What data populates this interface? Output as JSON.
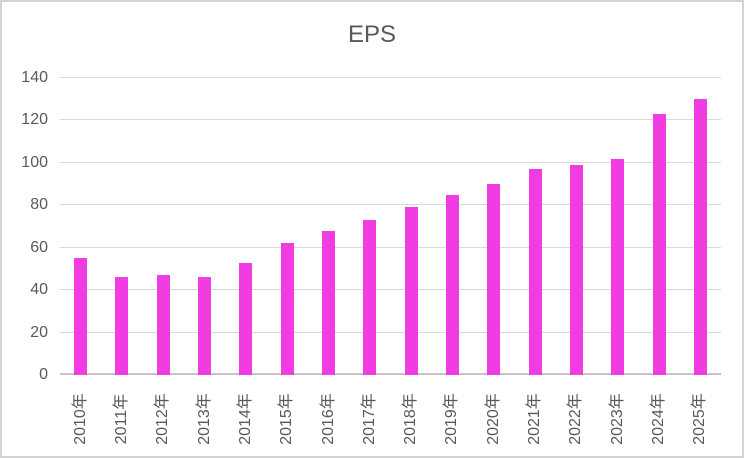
{
  "chart_data": {
    "type": "bar",
    "title": "EPS",
    "categories": [
      "2010年",
      "2011年",
      "2012年",
      "2013年",
      "2014年",
      "2015年",
      "2016年",
      "2017年",
      "2018年",
      "2019年",
      "2020年",
      "2021年",
      "2022年",
      "2023年",
      "2024年",
      "2025年"
    ],
    "values": [
      55,
      46,
      47,
      46,
      53,
      62,
      68,
      73,
      79,
      85,
      90,
      97,
      99,
      102,
      123,
      130
    ],
    "xlabel": "",
    "ylabel": "",
    "ylim": [
      0,
      140
    ],
    "yticks": [
      0,
      20,
      40,
      60,
      80,
      100,
      120,
      140
    ],
    "grid": "horizontal-only",
    "legend": "none",
    "x_label_rotation": -90
  },
  "colors": {
    "bar": "#f13ce1",
    "gridline": "#d9d9d9",
    "axis_line": "#c6c6c6",
    "text": "#595959",
    "frame_border": "#d3d3d3",
    "background": "#ffffff"
  }
}
